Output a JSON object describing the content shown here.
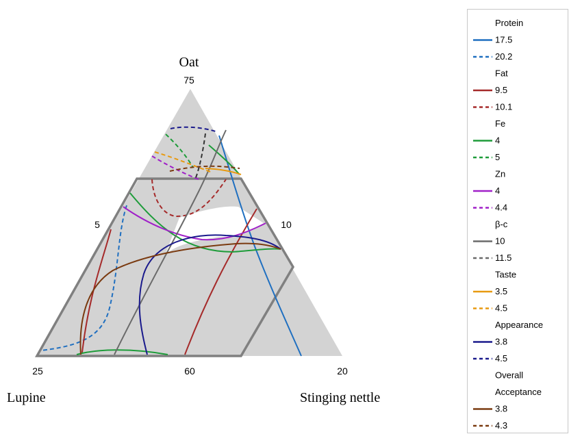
{
  "chart_data": {
    "type": "ternary contour",
    "vertex_labels": {
      "top": "Oat",
      "left": "Lupine",
      "right": "Stinging nettle"
    },
    "tick_labels": {
      "top": "75",
      "left_edge": "5",
      "right_edge": "10",
      "bottom_left": "25",
      "bottom_mid": "60",
      "bottom_right": "20"
    },
    "groups": [
      {
        "name": "Protein",
        "color": "#1f6fc0",
        "levels": [
          "17.5",
          "20.2"
        ]
      },
      {
        "name": "Fat",
        "color": "#a52a2a",
        "levels": [
          "9.5",
          "10.1"
        ]
      },
      {
        "name": "Fe",
        "color": "#1e9c3a",
        "levels": [
          "4",
          "5"
        ]
      },
      {
        "name": "Zn",
        "color": "#a020c8",
        "levels": [
          "4",
          "4.4"
        ]
      },
      {
        "name": "β-c",
        "color": "#6a6a6a",
        "levels": [
          "10",
          "11.5"
        ]
      },
      {
        "name": "Taste",
        "color": "#e89a10",
        "levels": [
          "3.5",
          "4.5"
        ]
      },
      {
        "name": "Appearance",
        "color": "#1a1a8c",
        "levels": [
          "3.8",
          "4.5"
        ]
      },
      {
        "name": "Overall Acceptance",
        "color": "#7a3a10",
        "levels": [
          "3.8",
          "4.3"
        ]
      }
    ],
    "legend_placement": "right"
  }
}
